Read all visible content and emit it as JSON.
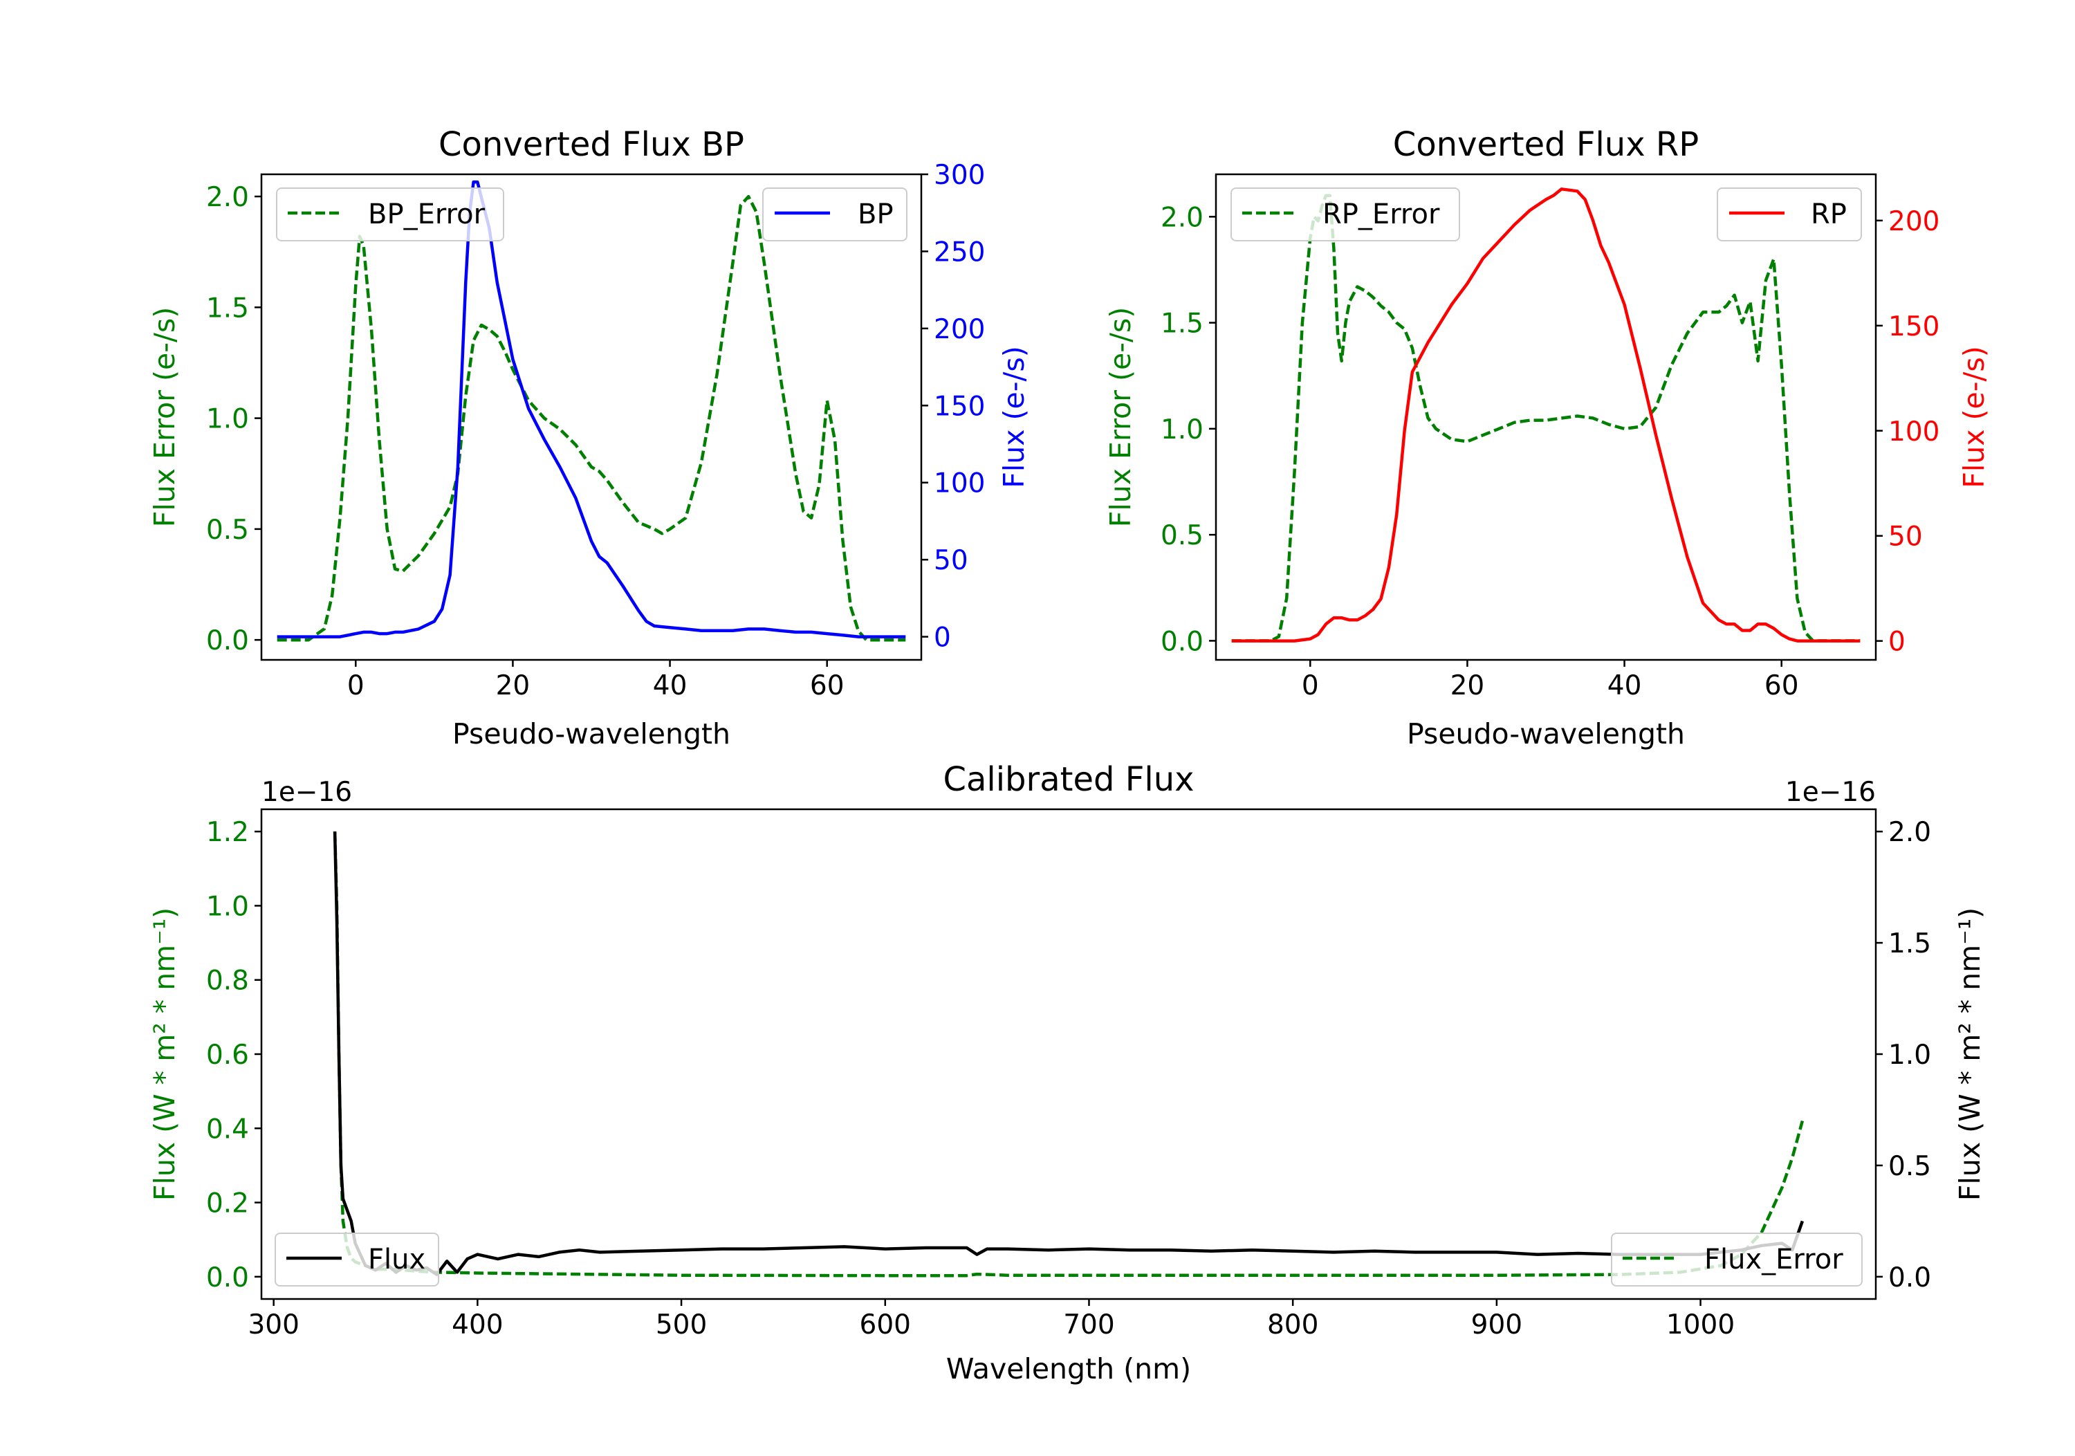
{
  "chart_data": [
    {
      "type": "line",
      "title": "Converted Flux BP",
      "xlabel": "Pseudo-wavelength",
      "ylabel_left": "Flux Error (e-/s)",
      "ylabel_right": "Flux (e-/s)",
      "xlim": [
        -12,
        72
      ],
      "ylim_left": [
        -0.09,
        2.1
      ],
      "ylim_right": [
        -15,
        300
      ],
      "xticks": [
        0,
        20,
        40,
        60
      ],
      "yticks_left": [
        0.0,
        0.5,
        1.0,
        1.5,
        2.0
      ],
      "yticks_left_labels": [
        "0.0",
        "0.5",
        "1.0",
        "1.5",
        "2.0"
      ],
      "yticks_right": [
        0,
        50,
        100,
        150,
        200,
        250,
        300
      ],
      "left_axis_color": "#008000",
      "right_axis_color": "#0000ff",
      "series": [
        {
          "name": "BP_Error",
          "axis": "left",
          "style": "dashed",
          "color": "#008000",
          "x": [
            -10,
            -6,
            -4,
            -3,
            -2,
            -1,
            0,
            0.5,
            1,
            2,
            3,
            4,
            5,
            6,
            8,
            10,
            12,
            13,
            14,
            15,
            16,
            17,
            18,
            19,
            20,
            22,
            24,
            26,
            28,
            30,
            31,
            32,
            34,
            36,
            38,
            39,
            40,
            42,
            44,
            46,
            48,
            49,
            50,
            51,
            52,
            54,
            56,
            57,
            58,
            59,
            60,
            61,
            62,
            63,
            64,
            65,
            66,
            68,
            70
          ],
          "values": [
            0,
            0,
            0.05,
            0.2,
            0.55,
            1.0,
            1.6,
            1.82,
            1.78,
            1.4,
            0.9,
            0.5,
            0.32,
            0.31,
            0.38,
            0.48,
            0.6,
            0.75,
            1.1,
            1.35,
            1.42,
            1.4,
            1.37,
            1.3,
            1.22,
            1.08,
            1.0,
            0.95,
            0.88,
            0.78,
            0.76,
            0.72,
            0.62,
            0.53,
            0.5,
            0.48,
            0.5,
            0.55,
            0.8,
            1.2,
            1.7,
            1.96,
            2.0,
            1.93,
            1.7,
            1.2,
            0.75,
            0.58,
            0.55,
            0.7,
            1.08,
            0.9,
            0.45,
            0.15,
            0.04,
            0.0,
            0.0,
            0.0,
            0.0
          ]
        },
        {
          "name": "BP",
          "axis": "right",
          "style": "solid",
          "color": "#0000ff",
          "x": [
            -10,
            -6,
            -4,
            -2,
            0,
            1,
            2,
            3,
            4,
            5,
            6,
            8,
            10,
            11,
            12,
            13,
            13.5,
            14,
            14.5,
            15,
            15.5,
            16,
            17,
            18,
            19,
            20,
            22,
            24,
            26,
            28,
            30,
            31,
            32,
            34,
            36,
            37,
            38,
            40,
            42,
            44,
            46,
            48,
            50,
            52,
            54,
            56,
            58,
            60,
            62,
            64,
            66,
            68,
            70
          ],
          "values": [
            0,
            0,
            0,
            0,
            2,
            3,
            3,
            2,
            2,
            3,
            3,
            5,
            10,
            18,
            40,
            110,
            170,
            230,
            275,
            295,
            295,
            285,
            265,
            230,
            205,
            180,
            148,
            128,
            110,
            90,
            62,
            52,
            48,
            33,
            17,
            10,
            7,
            6,
            5,
            4,
            4,
            4,
            5,
            5,
            4,
            3,
            3,
            2,
            1,
            0,
            0,
            0,
            0
          ]
        }
      ],
      "legend": [
        {
          "label": "BP_Error",
          "position": "upper-left"
        },
        {
          "label": "BP",
          "position": "upper-right"
        }
      ]
    },
    {
      "type": "line",
      "title": "Converted Flux RP",
      "xlabel": "Pseudo-wavelength",
      "ylabel_left": "Flux Error (e-/s)",
      "ylabel_right": "Flux (e-/s)",
      "xlim": [
        -12,
        72
      ],
      "ylim_left": [
        -0.09,
        2.2
      ],
      "ylim_right": [
        -9,
        222
      ],
      "xticks": [
        0,
        20,
        40,
        60
      ],
      "yticks_left": [
        0.0,
        0.5,
        1.0,
        1.5,
        2.0
      ],
      "yticks_left_labels": [
        "0.0",
        "0.5",
        "1.0",
        "1.5",
        "2.0"
      ],
      "yticks_right": [
        0,
        50,
        100,
        150,
        200
      ],
      "left_axis_color": "#008000",
      "right_axis_color": "#ff0000",
      "series": [
        {
          "name": "RP_Error",
          "axis": "left",
          "style": "dashed",
          "color": "#008000",
          "x": [
            -10,
            -5,
            -4,
            -3,
            -2,
            -1,
            0,
            0.5,
            1,
            1.5,
            2,
            2.5,
            3,
            3.5,
            4,
            4.5,
            5,
            6,
            7,
            8,
            9,
            10,
            11,
            12,
            13,
            14,
            15,
            16,
            18,
            20,
            22,
            24,
            26,
            28,
            30,
            32,
            34,
            36,
            38,
            40,
            42,
            44,
            46,
            48,
            50,
            52,
            53,
            54,
            55,
            56,
            57,
            58,
            59,
            60,
            61,
            62,
            63,
            64,
            66,
            70
          ],
          "values": [
            0,
            0,
            0.02,
            0.2,
            0.8,
            1.5,
            1.9,
            2.0,
            1.98,
            2.05,
            2.1,
            2.1,
            1.85,
            1.45,
            1.32,
            1.5,
            1.6,
            1.67,
            1.65,
            1.62,
            1.58,
            1.55,
            1.5,
            1.47,
            1.38,
            1.2,
            1.05,
            1.0,
            0.95,
            0.94,
            0.97,
            1.0,
            1.03,
            1.04,
            1.04,
            1.05,
            1.06,
            1.05,
            1.02,
            1.0,
            1.01,
            1.1,
            1.3,
            1.45,
            1.55,
            1.55,
            1.58,
            1.63,
            1.5,
            1.6,
            1.32,
            1.7,
            1.8,
            1.3,
            0.7,
            0.2,
            0.04,
            0.0,
            0.0,
            0.0
          ]
        },
        {
          "name": "RP",
          "axis": "right",
          "style": "solid",
          "color": "#ff0000",
          "x": [
            -10,
            -4,
            -2,
            0,
            1,
            2,
            3,
            4,
            5,
            6,
            7,
            8,
            9,
            10,
            11,
            12,
            13,
            14,
            15,
            16,
            18,
            20,
            22,
            24,
            26,
            28,
            30,
            31,
            32,
            34,
            35,
            36,
            37,
            38,
            40,
            42,
            44,
            46,
            48,
            50,
            52,
            53,
            54,
            55,
            56,
            57,
            58,
            59,
            60,
            61,
            62,
            64,
            66,
            70
          ],
          "values": [
            0,
            0,
            0,
            1,
            3,
            8,
            11,
            11,
            10,
            10,
            12,
            15,
            20,
            35,
            60,
            100,
            128,
            135,
            142,
            148,
            160,
            170,
            182,
            190,
            198,
            205,
            210,
            212,
            215,
            214,
            210,
            200,
            188,
            180,
            160,
            130,
            98,
            68,
            40,
            18,
            10,
            8,
            8,
            5,
            5,
            8,
            8,
            6,
            3,
            1,
            0,
            0,
            0,
            0
          ]
        }
      ],
      "legend": [
        {
          "label": "RP_Error",
          "position": "upper-left"
        },
        {
          "label": "RP",
          "position": "upper-right"
        }
      ]
    },
    {
      "type": "line",
      "title": "Calibrated Flux",
      "xlabel": "Wavelength (nm)",
      "ylabel_left": "Flux (W * m² * nm⁻¹)",
      "ylabel_right": "Flux (W * m² * nm⁻¹)",
      "offset_left": "1e−16",
      "offset_right": "1e−16",
      "xlim": [
        294,
        1086
      ],
      "ylim_left": [
        -0.06,
        1.26
      ],
      "ylim_right": [
        -0.1,
        2.1
      ],
      "xticks": [
        300,
        400,
        500,
        600,
        700,
        800,
        900,
        1000
      ],
      "yticks_left": [
        0.0,
        0.2,
        0.4,
        0.6,
        0.8,
        1.0,
        1.2
      ],
      "yticks_left_labels": [
        "0.0",
        "0.2",
        "0.4",
        "0.6",
        "0.8",
        "1.0",
        "1.2"
      ],
      "yticks_right": [
        0.0,
        0.5,
        1.0,
        1.5,
        2.0
      ],
      "yticks_right_labels": [
        "0.0",
        "0.5",
        "1.0",
        "1.5",
        "2.0"
      ],
      "left_axis_color": "#008000",
      "right_axis_color": "#000000",
      "series": [
        {
          "name": "Flux_Error",
          "axis": "left",
          "style": "dashed",
          "color": "#008000",
          "x": [
            330,
            331,
            332,
            333,
            334,
            336,
            338,
            340,
            345,
            350,
            360,
            370,
            380,
            400,
            450,
            500,
            600,
            640,
            645,
            660,
            700,
            800,
            900,
            960,
            990,
            1010,
            1020,
            1030,
            1040,
            1045,
            1050
          ],
          "values": [
            1.2,
            1.0,
            0.6,
            0.3,
            0.15,
            0.08,
            0.05,
            0.04,
            0.03,
            0.02,
            0.02,
            0.015,
            0.012,
            0.01,
            0.007,
            0.004,
            0.003,
            0.003,
            0.007,
            0.004,
            0.004,
            0.004,
            0.004,
            0.006,
            0.012,
            0.03,
            0.06,
            0.12,
            0.24,
            0.32,
            0.42
          ]
        },
        {
          "name": "Flux",
          "axis": "right",
          "style": "solid",
          "color": "#000000",
          "x": [
            330,
            331,
            332,
            333,
            334,
            336,
            338,
            340,
            345,
            350,
            355,
            360,
            365,
            370,
            375,
            380,
            385,
            390,
            395,
            400,
            410,
            420,
            430,
            440,
            450,
            460,
            480,
            500,
            520,
            540,
            560,
            580,
            600,
            620,
            640,
            645,
            650,
            660,
            680,
            700,
            720,
            740,
            760,
            780,
            800,
            820,
            840,
            860,
            880,
            900,
            920,
            940,
            960,
            980,
            1000,
            1010,
            1020,
            1030,
            1040,
            1045,
            1050
          ],
          "values": [
            2.0,
            1.6,
            1.0,
            0.5,
            0.35,
            0.3,
            0.25,
            0.15,
            0.05,
            0.03,
            0.06,
            0.02,
            0.05,
            0.03,
            0.04,
            0.01,
            0.07,
            0.02,
            0.08,
            0.1,
            0.08,
            0.1,
            0.09,
            0.11,
            0.12,
            0.11,
            0.115,
            0.12,
            0.125,
            0.125,
            0.13,
            0.135,
            0.125,
            0.13,
            0.13,
            0.1,
            0.125,
            0.125,
            0.12,
            0.125,
            0.12,
            0.12,
            0.115,
            0.12,
            0.115,
            0.11,
            0.115,
            0.11,
            0.11,
            0.11,
            0.1,
            0.105,
            0.1,
            0.1,
            0.1,
            0.11,
            0.12,
            0.14,
            0.15,
            0.12,
            0.25
          ]
        }
      ],
      "legend": [
        {
          "label": "Flux",
          "position": "lower-left"
        },
        {
          "label": "Flux_Error",
          "position": "lower-right"
        }
      ]
    }
  ]
}
